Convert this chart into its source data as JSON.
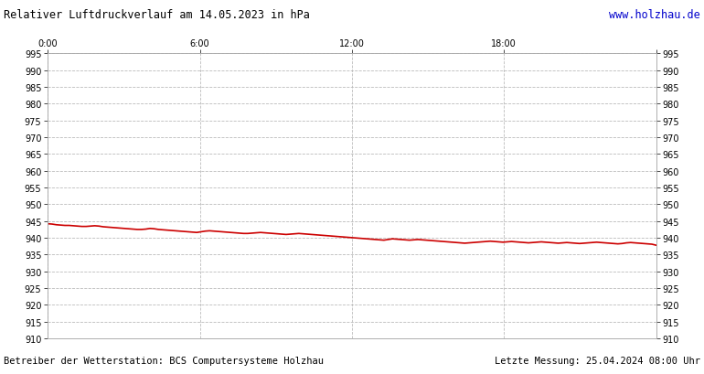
{
  "title": "Relativer Luftdruckverlauf am 14.05.2023 in hPa",
  "url_text": "www.holzhau.de",
  "footer_left": "Betreiber der Wetterstation: BCS Computersysteme Holzhau",
  "footer_right": "Letzte Messung: 25.04.2024 08:00 Uhr",
  "ylim": [
    910,
    995
  ],
  "ytick_step": 5,
  "xlim": [
    0,
    144
  ],
  "xtick_positions": [
    0,
    36,
    72,
    108,
    144
  ],
  "xtick_labels": [
    "0:00",
    "6:00",
    "12:00",
    "18:00",
    ""
  ],
  "bg_color": "#ffffff",
  "plot_bg_color": "#ffffff",
  "grid_color": "#bbbbbb",
  "line_color": "#cc0000",
  "line_width": 1.2,
  "pressure_data": [
    944.2,
    944.1,
    943.9,
    943.8,
    943.7,
    943.7,
    943.6,
    943.5,
    943.4,
    943.4,
    943.5,
    943.6,
    943.5,
    943.3,
    943.2,
    943.1,
    943.0,
    942.9,
    942.8,
    942.7,
    942.6,
    942.5,
    942.5,
    942.6,
    942.8,
    942.7,
    942.5,
    942.4,
    942.3,
    942.2,
    942.1,
    942.0,
    941.9,
    941.8,
    941.7,
    941.6,
    941.8,
    942.0,
    942.1,
    942.0,
    941.9,
    941.8,
    941.7,
    941.6,
    941.5,
    941.4,
    941.3,
    941.3,
    941.4,
    941.5,
    941.6,
    941.5,
    941.4,
    941.3,
    941.2,
    941.1,
    941.0,
    941.1,
    941.2,
    941.3,
    941.2,
    941.1,
    941.0,
    940.9,
    940.8,
    940.7,
    940.6,
    940.5,
    940.4,
    940.3,
    940.2,
    940.1,
    940.0,
    939.9,
    939.8,
    939.7,
    939.6,
    939.5,
    939.4,
    939.3,
    939.5,
    939.7,
    939.6,
    939.5,
    939.4,
    939.3,
    939.4,
    939.5,
    939.4,
    939.3,
    939.2,
    939.1,
    939.0,
    938.9,
    938.8,
    938.7,
    938.6,
    938.5,
    938.4,
    938.5,
    938.6,
    938.7,
    938.8,
    938.9,
    939.0,
    938.9,
    938.8,
    938.7,
    938.8,
    938.9,
    938.8,
    938.7,
    938.6,
    938.5,
    938.6,
    938.7,
    938.8,
    938.7,
    938.6,
    938.5,
    938.4,
    938.5,
    938.6,
    938.5,
    938.4,
    938.3,
    938.4,
    938.5,
    938.6,
    938.7,
    938.6,
    938.5,
    938.4,
    938.3,
    938.2,
    938.3,
    938.5,
    938.6,
    938.5,
    938.4,
    938.3,
    938.2,
    938.1,
    937.8
  ]
}
